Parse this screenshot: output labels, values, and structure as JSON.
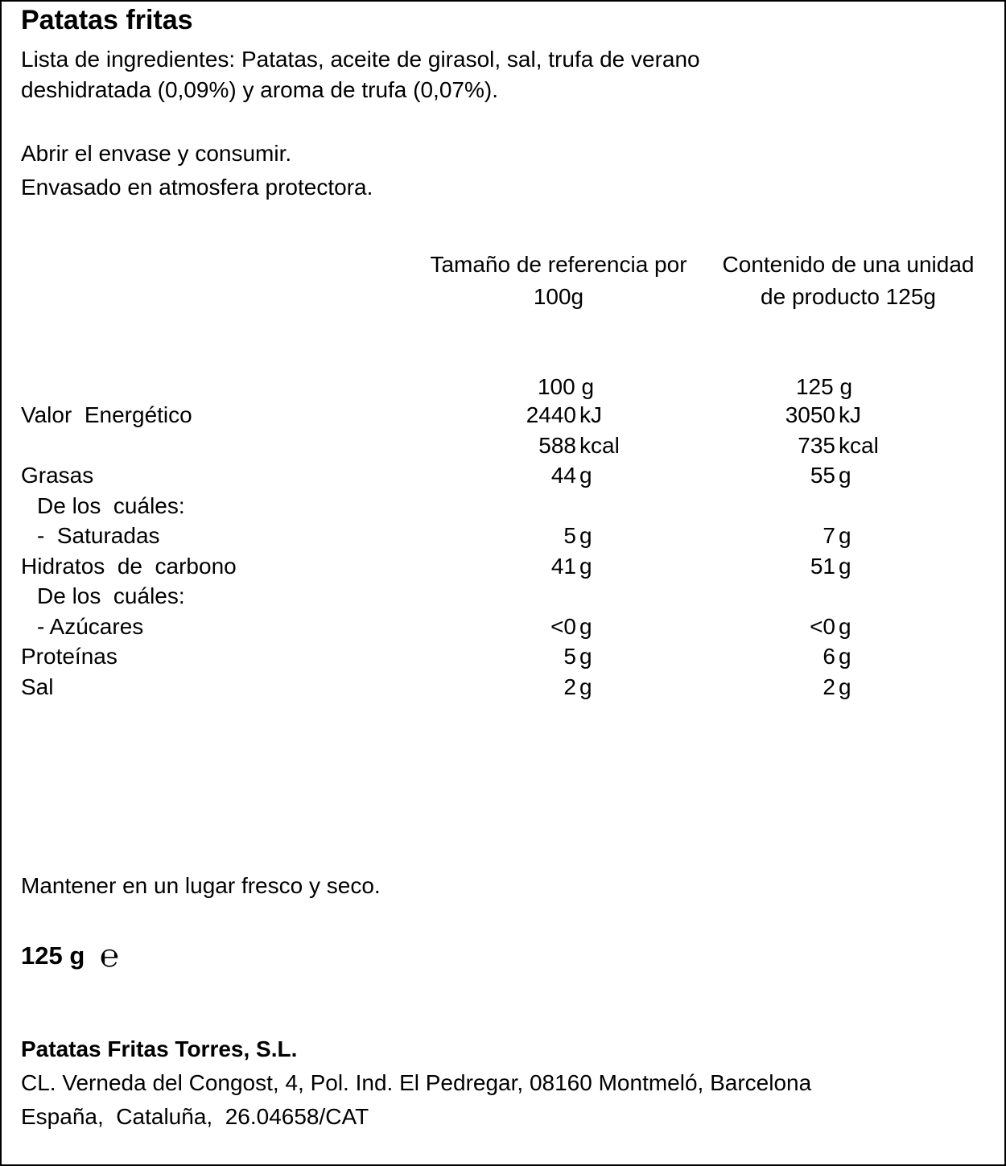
{
  "title": "Patatas fritas",
  "ingredients": [
    "Lista de ingredientes: Patatas, aceite de girasol, sal, trufa de verano",
    "deshidratada (0,09%) y aroma de trufa (0,07%)."
  ],
  "instructions": [
    "Abrir el envase y consumir.",
    "Envasado en atmosfera protectora."
  ],
  "nutrition": {
    "headers": [
      [
        "Tamaño de referencia por",
        "100g"
      ],
      [
        "Contenido de una unidad",
        "de producto 125g"
      ]
    ],
    "basis": [
      "100 g",
      "125 g"
    ],
    "rows": [
      {
        "label": "Valor  Energético",
        "values": [
          [
            "2440",
            "kJ"
          ],
          [
            "3050",
            "kJ"
          ]
        ]
      },
      {
        "values": [
          [
            "588",
            "kcal"
          ],
          [
            "735",
            "kcal"
          ]
        ]
      },
      {
        "label": "Grasas",
        "values": [
          [
            "44",
            "g"
          ],
          [
            "55",
            "g"
          ]
        ]
      },
      {
        "sublabel": "De los  cuáles:"
      },
      {
        "sublabel": "-  Saturadas",
        "values": [
          [
            "5",
            "g"
          ],
          [
            "7",
            "g"
          ]
        ]
      },
      {
        "label": "Hidratos  de  carbono",
        "values": [
          [
            "41",
            "g"
          ],
          [
            "51",
            "g"
          ]
        ]
      },
      {
        "sublabel": "De los  cuáles:"
      },
      {
        "sublabel": "- Azúcares",
        "values": [
          [
            "<0",
            "g"
          ],
          [
            "<0",
            "g"
          ]
        ]
      },
      {
        "label": "Proteínas",
        "values": [
          [
            "5",
            "g"
          ],
          [
            "6",
            "g"
          ]
        ]
      },
      {
        "label": "Sal",
        "values": [
          [
            "2",
            "g"
          ],
          [
            "2",
            "g"
          ]
        ]
      }
    ]
  },
  "storage": "Mantener en un lugar fresco y seco.",
  "net_weight": {
    "amount": "125 g",
    "symbol": "℮"
  },
  "company": {
    "name": "Patatas Fritas Torres, S.L.",
    "address": [
      "CL. Verneda del Congost, 4, Pol. Ind. El Pedregar, 08160 Montmeló, Barcelona",
      "España,  Cataluña,  26.04658/CAT"
    ]
  }
}
